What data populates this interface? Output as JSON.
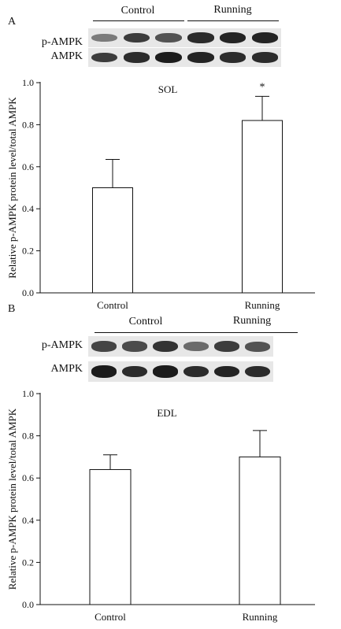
{
  "chart_data": [
    {
      "panel": "A",
      "type": "bar",
      "title": "SOL",
      "categories": [
        "Control",
        "Running"
      ],
      "values": [
        0.5,
        0.82
      ],
      "error_upper": [
        0.635,
        0.935
      ],
      "annotations": [
        "",
        "*"
      ],
      "xlabel": "",
      "ylabel": "Relative p-AMPK protein level/total AMPK",
      "ylim": [
        0,
        1.0
      ],
      "yticks": [
        "0.0",
        "0.2",
        "0.4",
        "0.6",
        "0.8",
        "1.0"
      ],
      "grid": false,
      "blot": {
        "groups": [
          "Control",
          "Running"
        ],
        "rows": [
          "p-AMPK",
          "AMPK"
        ],
        "intensity": [
          [
            0.35,
            0.75,
            0.6,
            0.85,
            0.9,
            0.9
          ],
          [
            0.75,
            0.85,
            0.95,
            0.9,
            0.85,
            0.85
          ]
        ]
      }
    },
    {
      "panel": "B",
      "type": "bar",
      "title": "EDL",
      "categories": [
        "Control",
        "Running"
      ],
      "values": [
        0.64,
        0.7
      ],
      "error_upper": [
        0.71,
        0.825
      ],
      "annotations": [
        "",
        ""
      ],
      "xlabel": "",
      "ylabel": "Relative p-AMPK protein level/total AMPK",
      "ylim": [
        0,
        1.0
      ],
      "yticks": [
        "0.0",
        "0.2",
        "0.4",
        "0.6",
        "0.8",
        "1.0"
      ],
      "grid": false,
      "blot": {
        "groups": [
          "Control",
          "Running"
        ],
        "rows": [
          "p-AMPK",
          "AMPK"
        ],
        "intensity": [
          [
            0.7,
            0.65,
            0.8,
            0.45,
            0.75,
            0.6
          ],
          [
            0.95,
            0.85,
            0.95,
            0.85,
            0.9,
            0.85
          ]
        ]
      }
    }
  ]
}
